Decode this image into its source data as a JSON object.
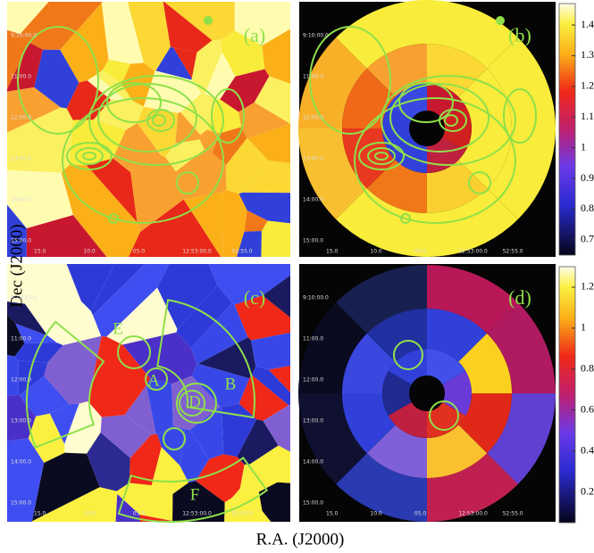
{
  "figure": {
    "y_label": "Dec (J2000)",
    "x_label": "R.A. (J2000)",
    "dec_ticks": [
      "9:10:00.0",
      "11:00.0",
      "12:00.0",
      "13:00.0",
      "14:00.0",
      "15:00.0"
    ],
    "ra_ticks": [
      "15.0",
      "10.0",
      "05.0",
      "12:53:00.0",
      "52:55.0"
    ],
    "panels": [
      {
        "label": "(a)"
      },
      {
        "label": "(b)"
      },
      {
        "label": "(c)",
        "regions": [
          "E",
          "A",
          "B",
          "D",
          "F"
        ]
      },
      {
        "label": "(d)"
      }
    ],
    "colorbars": [
      {
        "lim": [
          0.65,
          1.47
        ],
        "ticks": [
          0.7,
          0.8,
          0.9,
          1,
          1.1,
          1.2,
          1.3,
          1.4
        ]
      },
      {
        "lim": [
          0.05,
          1.3
        ],
        "ticks": [
          0.2,
          0.4,
          0.6,
          0.8,
          1,
          1.2
        ]
      }
    ]
  }
}
